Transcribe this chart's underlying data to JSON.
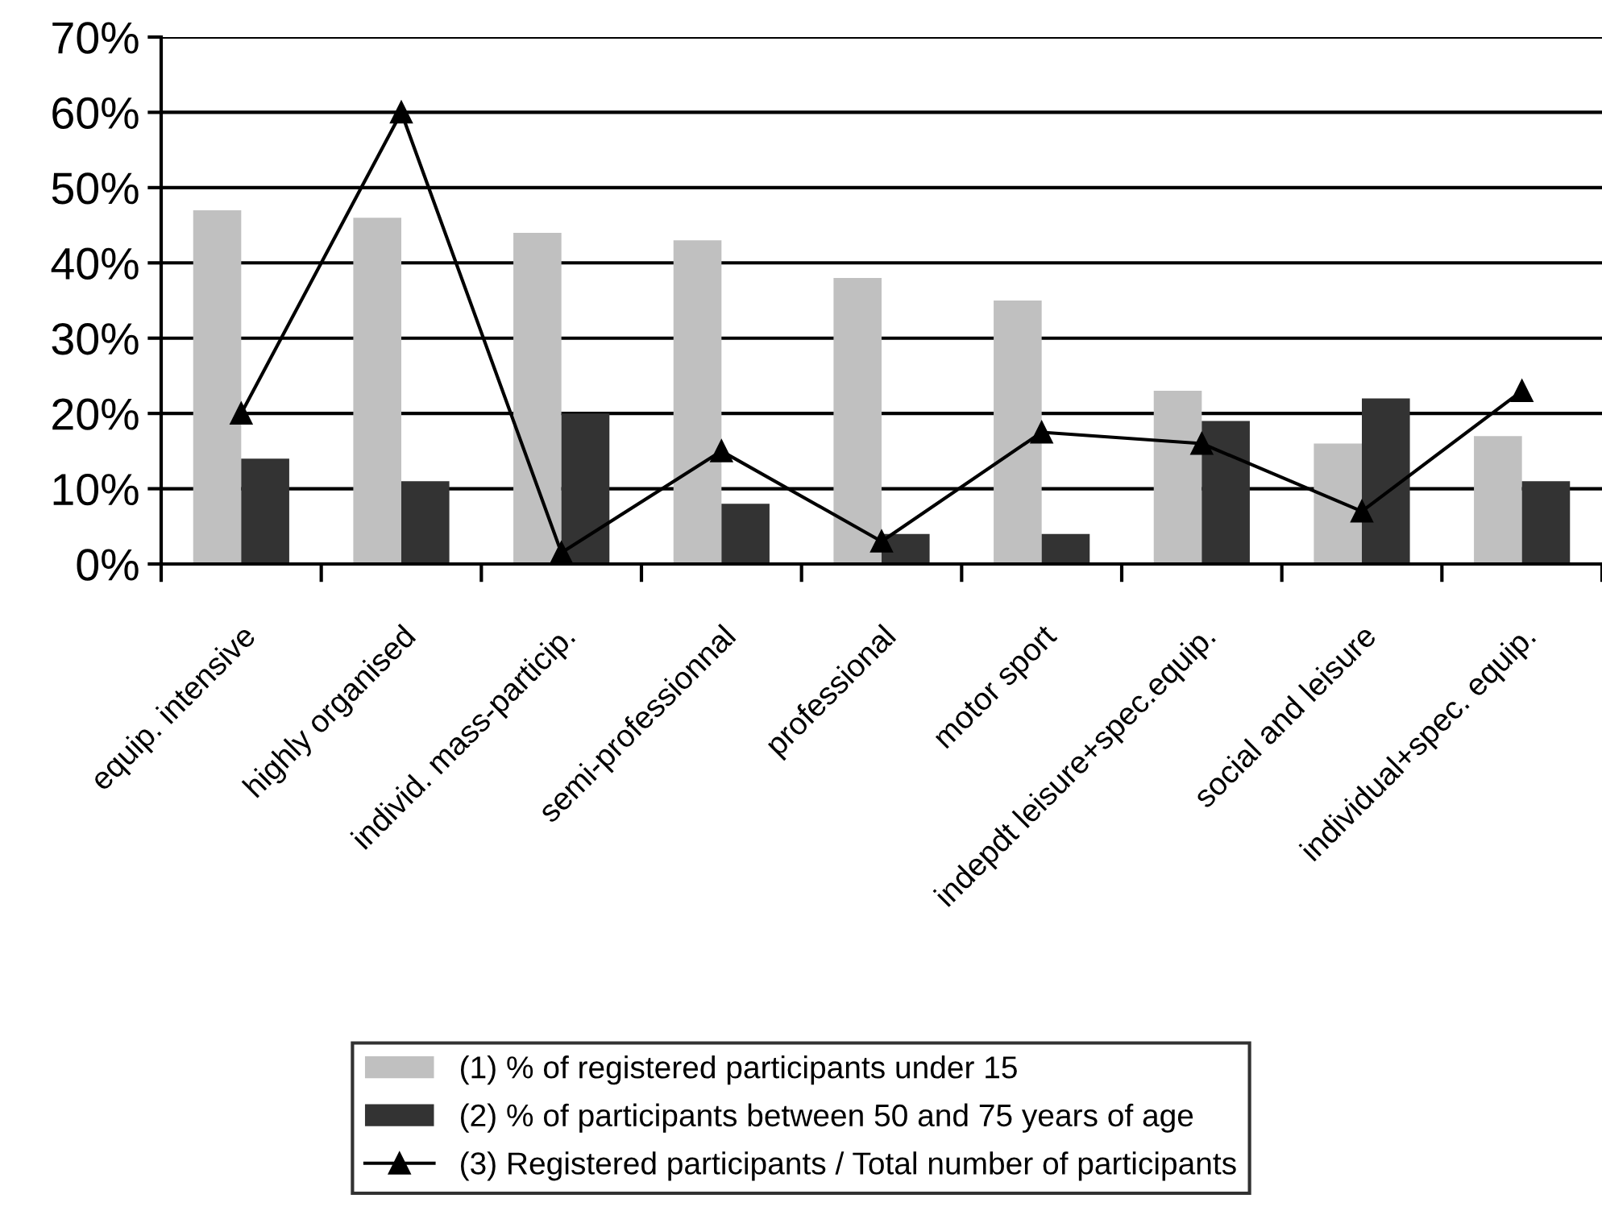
{
  "chart_data": {
    "type": "bar",
    "categories": [
      "equip. intensive",
      "highly organised",
      "individ. mass-particip.",
      "semi-professionnal",
      "professional",
      "motor sport",
      "indepdt leisure+spec.equip.",
      "social and leisure",
      "individual+spec. equip."
    ],
    "series": [
      {
        "name": "(1) % of registered participants under 15",
        "color": "#c0c0c0",
        "values": [
          47,
          46,
          44,
          43,
          38,
          35,
          23,
          16,
          17
        ]
      },
      {
        "name": "(2) % of participants between 50 and 75 years of age",
        "color": "#333333",
        "values": [
          14,
          11,
          20,
          8,
          4,
          4,
          19,
          22,
          11
        ]
      },
      {
        "name": "(3) Registered participants / Total number of participants",
        "type": "line",
        "color": "#000000",
        "marker": "triangle",
        "values": [
          20,
          60,
          1.5,
          15,
          3,
          17.5,
          16,
          7,
          23
        ]
      }
    ],
    "ylim": [
      0,
      70
    ],
    "yticks": [
      {
        "value": 0,
        "label": "0%"
      },
      {
        "value": 10,
        "label": "10%"
      },
      {
        "value": 20,
        "label": "20%"
      },
      {
        "value": 30,
        "label": "30%"
      },
      {
        "value": 40,
        "label": "40%"
      },
      {
        "value": 50,
        "label": "50%"
      },
      {
        "value": 60,
        "label": "60%"
      },
      {
        "value": 70,
        "label": "70%"
      }
    ],
    "grid": "y",
    "legend": "bottom"
  }
}
